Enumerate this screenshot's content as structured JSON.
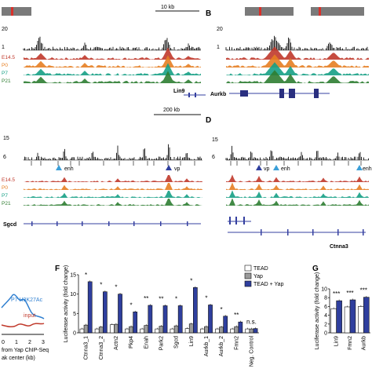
{
  "panels": {
    "A": {
      "letter": "",
      "scale": "10 kb",
      "ytop": "20",
      "ybot": "1",
      "gene": "Lin9"
    },
    "B": {
      "letter": "B",
      "ytop": "20",
      "ybot": "1",
      "gene": "Aurkb"
    },
    "C": {
      "letter": "",
      "scale": "200 kb",
      "ytop": "15",
      "ybot": "6",
      "gene": "Sgcd",
      "enh_label": "enh",
      "vp_label": "vp"
    },
    "D": {
      "letter": "D",
      "ytop": "15",
      "ybot": "6",
      "gene": "Ctnna3",
      "vp_label": "vp",
      "enh_label": "enh",
      "enh2_label": "enh"
    },
    "E": {
      "series_label": "P7 H3K27Ac",
      "input_label": "input",
      "xlabel_line1": "from Yap ChIP-Seq",
      "xlabel_line2": "ak center (kb)",
      "ticks": [
        "0",
        "1",
        "2",
        "3"
      ]
    },
    "F": {
      "letter": "F"
    },
    "G": {
      "letter": "G"
    }
  },
  "track_labels": [
    "E14.5",
    "P0",
    "P7",
    "P21"
  ],
  "track_colors": {
    "E14.5": "#c0392b",
    "P0": "#e67e22",
    "P7": "#16a085",
    "P21": "#2e7d32"
  },
  "chart_data": [
    {
      "panel": "F",
      "type": "bar",
      "ylabel": "Luciferase activity (fold change)",
      "ylim": [
        0,
        15
      ],
      "yticks": [
        0,
        5,
        10,
        15
      ],
      "legend": [
        "TEAD",
        "Yap",
        "TEAD + Yap"
      ],
      "categories": [
        "Ctnna3_1",
        "Ctnna3_2",
        "Actn2",
        "Pkp4",
        "Enah",
        "Park2",
        "Sgcd",
        "Lin9",
        "Aurkb_1",
        "Aurkb_2",
        "Fmn2",
        "Neg. Control"
      ],
      "series": [
        {
          "name": "TEAD",
          "color": "#ffffff",
          "values": [
            1.0,
            1.0,
            2.1,
            1.0,
            1.0,
            1.0,
            1.0,
            1.1,
            1.0,
            1.0,
            1.0,
            1.0
          ]
        },
        {
          "name": "Yap",
          "color": "#9a9a9a",
          "values": [
            2.0,
            1.5,
            2.2,
            1.6,
            1.9,
            1.7,
            1.8,
            2.3,
            1.6,
            1.5,
            1.6,
            1.0
          ]
        },
        {
          "name": "TEAD + Yap",
          "color": "#2f3f9e",
          "values": [
            13.2,
            10.6,
            10.0,
            5.4,
            7.1,
            7.0,
            7.0,
            11.7,
            7.2,
            4.3,
            2.8,
            1.1
          ]
        }
      ],
      "significance": [
        "*",
        "*",
        "*",
        "*",
        "**",
        "**",
        "*",
        "*",
        "*",
        "*",
        "**",
        "n.s."
      ]
    },
    {
      "panel": "G",
      "type": "bar",
      "ylabel": "Luciferase activity (fold change)",
      "ylim": [
        0,
        10
      ],
      "yticks": [
        0,
        2,
        4,
        6,
        8,
        10
      ],
      "categories": [
        "Lin9",
        "Fmn2",
        "Aurkb"
      ],
      "series": [
        {
          "name": "TEAD",
          "color": "#ffffff",
          "values": [
            5.5,
            5.9,
            6.0
          ]
        },
        {
          "name": "Yap",
          "color": "#2f3f9e",
          "values": [
            7.3,
            7.5,
            8.1
          ]
        }
      ],
      "significance": [
        "***",
        "***",
        "***"
      ]
    }
  ]
}
